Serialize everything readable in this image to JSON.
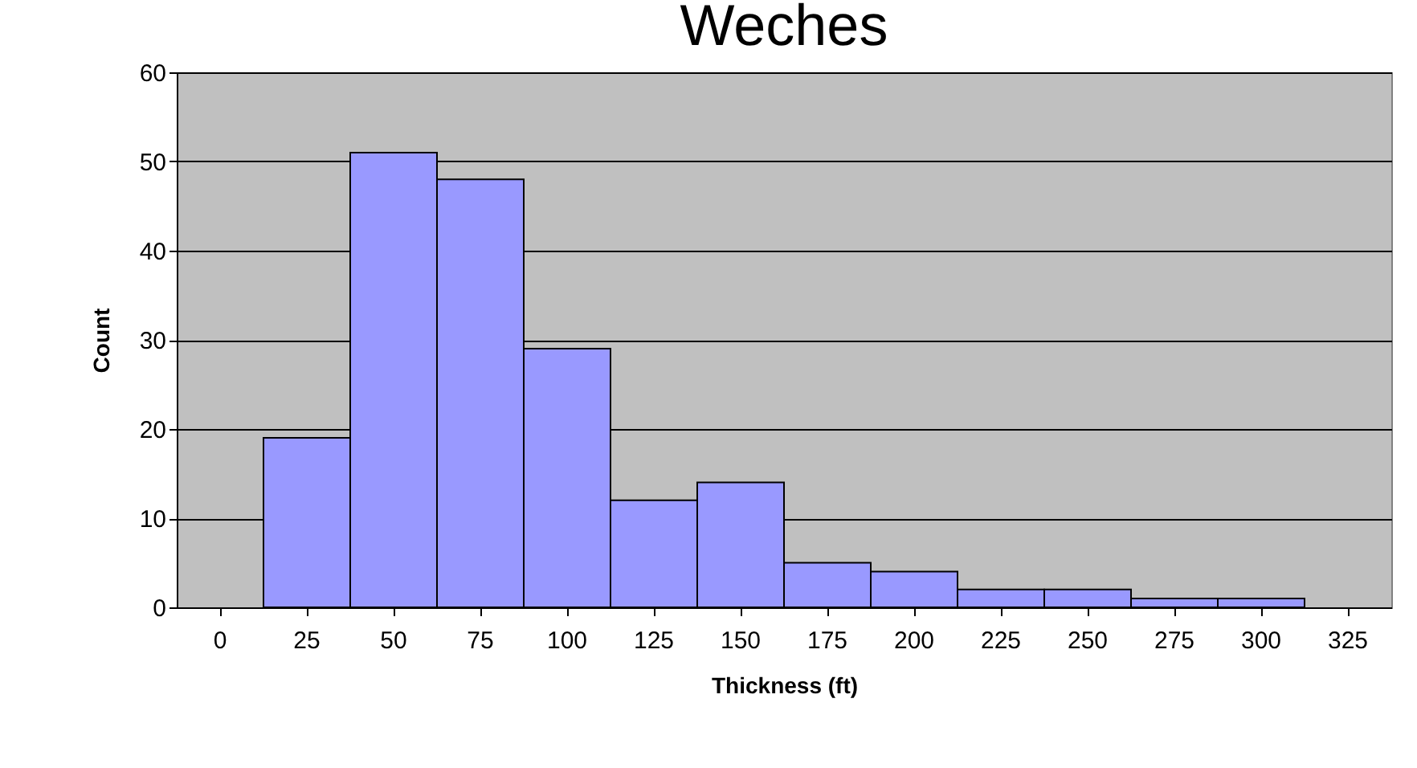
{
  "chart_data": {
    "type": "bar",
    "title": "Weches",
    "xlabel": "Thickness (ft)",
    "ylabel": "Count",
    "categories": [
      "0",
      "25",
      "50",
      "75",
      "100",
      "125",
      "150",
      "175",
      "200",
      "225",
      "250",
      "275",
      "300",
      "325"
    ],
    "values": [
      null,
      19,
      51,
      48,
      29,
      12,
      14,
      5,
      4,
      2,
      2,
      1,
      1,
      null
    ],
    "color": "#9999ff",
    "ylim": [
      0,
      60
    ],
    "yticks": [
      0,
      10,
      20,
      30,
      40,
      50,
      60
    ],
    "grid": "y"
  }
}
